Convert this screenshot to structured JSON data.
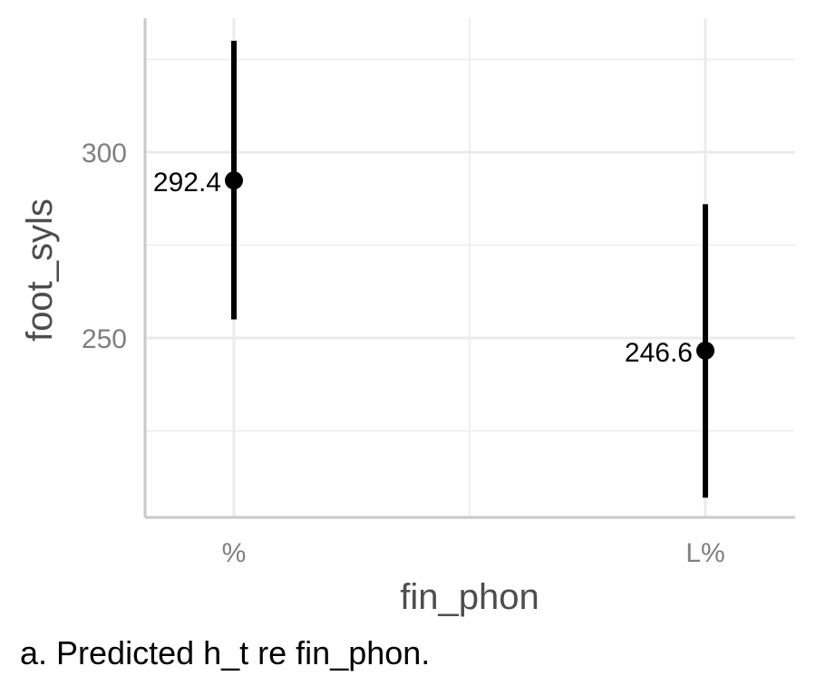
{
  "caption": "a. Predicted h_t re fin_phon.",
  "colors": {
    "grid": "#ebebeb",
    "axis_line": "#c8c8c8",
    "tick_text": "#7f7f7f",
    "axis_title": "#4d4d4d",
    "mark": "#000000"
  },
  "chart_data": {
    "type": "scatter",
    "subtype": "point-with-errorbar",
    "categories": [
      "%",
      "L%"
    ],
    "series": [
      {
        "points": [
          {
            "x": "%",
            "y": 292.4,
            "lower": 255,
            "upper": 330,
            "label": "292.4"
          },
          {
            "x": "L%",
            "y": 246.6,
            "lower": 207,
            "upper": 286,
            "label": "246.6"
          }
        ]
      }
    ],
    "xlabel": "fin_phon",
    "ylabel": "foot_syls",
    "yticks": [
      250,
      300
    ],
    "ytick_labels": [
      "250",
      "300"
    ],
    "ylim": [
      206,
      335
    ],
    "grid": true,
    "legend": "none"
  }
}
